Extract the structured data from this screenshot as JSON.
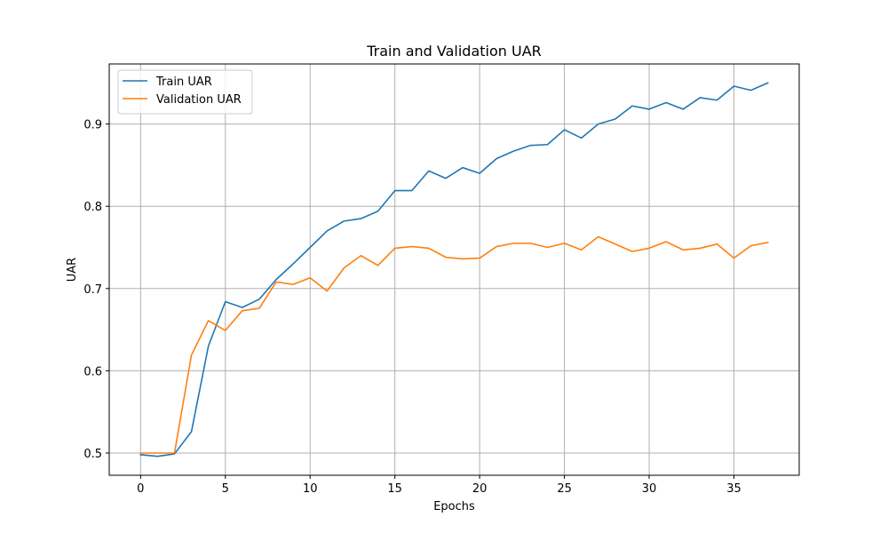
{
  "chart_data": {
    "type": "line",
    "title": "Train and Validation UAR",
    "xlabel": "Epochs",
    "ylabel": "UAR",
    "xlim": [
      -1.85,
      38.85
    ],
    "ylim": [
      0.473,
      0.973
    ],
    "xticks": [
      0,
      5,
      10,
      15,
      20,
      25,
      30,
      35
    ],
    "yticks": [
      0.5,
      0.6,
      0.7,
      0.8,
      0.9
    ],
    "grid": true,
    "legend_position": "top-left",
    "x": [
      0,
      1,
      2,
      3,
      4,
      5,
      6,
      7,
      8,
      9,
      10,
      11,
      12,
      13,
      14,
      15,
      16,
      17,
      18,
      19,
      20,
      21,
      22,
      23,
      24,
      25,
      26,
      27,
      28,
      29,
      30,
      31,
      32,
      33,
      34,
      35,
      36,
      37
    ],
    "series": [
      {
        "name": "Train UAR",
        "color": "#1f77b4",
        "values": [
          0.498,
          0.496,
          0.499,
          0.526,
          0.63,
          0.684,
          0.677,
          0.687,
          0.711,
          0.73,
          0.75,
          0.77,
          0.782,
          0.785,
          0.794,
          0.819,
          0.819,
          0.843,
          0.834,
          0.847,
          0.84,
          0.858,
          0.867,
          0.874,
          0.875,
          0.893,
          0.883,
          0.9,
          0.906,
          0.922,
          0.918,
          0.926,
          0.918,
          0.932,
          0.929,
          0.946,
          0.941,
          0.95
        ]
      },
      {
        "name": "Validation UAR",
        "color": "#ff7f0e",
        "values": [
          0.5,
          0.5,
          0.5,
          0.619,
          0.661,
          0.649,
          0.673,
          0.676,
          0.708,
          0.705,
          0.713,
          0.697,
          0.725,
          0.74,
          0.728,
          0.749,
          0.751,
          0.749,
          0.738,
          0.736,
          0.737,
          0.751,
          0.755,
          0.755,
          0.75,
          0.755,
          0.747,
          0.763,
          0.754,
          0.745,
          0.749,
          0.757,
          0.747,
          0.749,
          0.754,
          0.737,
          0.752,
          0.756
        ]
      }
    ]
  }
}
